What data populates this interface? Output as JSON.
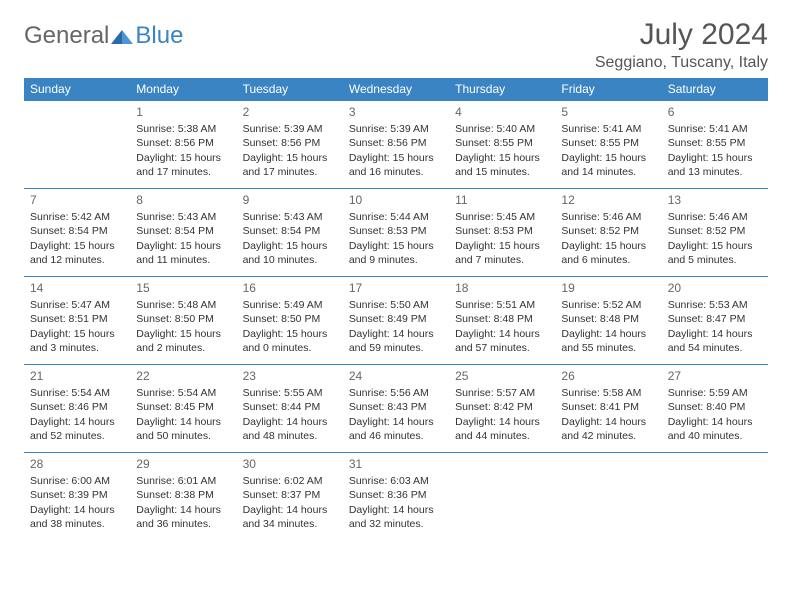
{
  "logo": {
    "general": "General",
    "blue": "Blue"
  },
  "title": "July 2024",
  "location": "Seggiano, Tuscany, Italy",
  "colors": {
    "header_bg": "#3b84c4",
    "header_text": "#ffffff",
    "border": "#3b84c4",
    "body_text": "#333333",
    "logo_gray": "#666666",
    "logo_blue": "#3b84c4",
    "background": "#ffffff"
  },
  "day_headers": [
    "Sunday",
    "Monday",
    "Tuesday",
    "Wednesday",
    "Thursday",
    "Friday",
    "Saturday"
  ],
  "weeks": [
    [
      null,
      {
        "n": "1",
        "sr": "Sunrise: 5:38 AM",
        "ss": "Sunset: 8:56 PM",
        "dl": "Daylight: 15 hours and 17 minutes."
      },
      {
        "n": "2",
        "sr": "Sunrise: 5:39 AM",
        "ss": "Sunset: 8:56 PM",
        "dl": "Daylight: 15 hours and 17 minutes."
      },
      {
        "n": "3",
        "sr": "Sunrise: 5:39 AM",
        "ss": "Sunset: 8:56 PM",
        "dl": "Daylight: 15 hours and 16 minutes."
      },
      {
        "n": "4",
        "sr": "Sunrise: 5:40 AM",
        "ss": "Sunset: 8:55 PM",
        "dl": "Daylight: 15 hours and 15 minutes."
      },
      {
        "n": "5",
        "sr": "Sunrise: 5:41 AM",
        "ss": "Sunset: 8:55 PM",
        "dl": "Daylight: 15 hours and 14 minutes."
      },
      {
        "n": "6",
        "sr": "Sunrise: 5:41 AM",
        "ss": "Sunset: 8:55 PM",
        "dl": "Daylight: 15 hours and 13 minutes."
      }
    ],
    [
      {
        "n": "7",
        "sr": "Sunrise: 5:42 AM",
        "ss": "Sunset: 8:54 PM",
        "dl": "Daylight: 15 hours and 12 minutes."
      },
      {
        "n": "8",
        "sr": "Sunrise: 5:43 AM",
        "ss": "Sunset: 8:54 PM",
        "dl": "Daylight: 15 hours and 11 minutes."
      },
      {
        "n": "9",
        "sr": "Sunrise: 5:43 AM",
        "ss": "Sunset: 8:54 PM",
        "dl": "Daylight: 15 hours and 10 minutes."
      },
      {
        "n": "10",
        "sr": "Sunrise: 5:44 AM",
        "ss": "Sunset: 8:53 PM",
        "dl": "Daylight: 15 hours and 9 minutes."
      },
      {
        "n": "11",
        "sr": "Sunrise: 5:45 AM",
        "ss": "Sunset: 8:53 PM",
        "dl": "Daylight: 15 hours and 7 minutes."
      },
      {
        "n": "12",
        "sr": "Sunrise: 5:46 AM",
        "ss": "Sunset: 8:52 PM",
        "dl": "Daylight: 15 hours and 6 minutes."
      },
      {
        "n": "13",
        "sr": "Sunrise: 5:46 AM",
        "ss": "Sunset: 8:52 PM",
        "dl": "Daylight: 15 hours and 5 minutes."
      }
    ],
    [
      {
        "n": "14",
        "sr": "Sunrise: 5:47 AM",
        "ss": "Sunset: 8:51 PM",
        "dl": "Daylight: 15 hours and 3 minutes."
      },
      {
        "n": "15",
        "sr": "Sunrise: 5:48 AM",
        "ss": "Sunset: 8:50 PM",
        "dl": "Daylight: 15 hours and 2 minutes."
      },
      {
        "n": "16",
        "sr": "Sunrise: 5:49 AM",
        "ss": "Sunset: 8:50 PM",
        "dl": "Daylight: 15 hours and 0 minutes."
      },
      {
        "n": "17",
        "sr": "Sunrise: 5:50 AM",
        "ss": "Sunset: 8:49 PM",
        "dl": "Daylight: 14 hours and 59 minutes."
      },
      {
        "n": "18",
        "sr": "Sunrise: 5:51 AM",
        "ss": "Sunset: 8:48 PM",
        "dl": "Daylight: 14 hours and 57 minutes."
      },
      {
        "n": "19",
        "sr": "Sunrise: 5:52 AM",
        "ss": "Sunset: 8:48 PM",
        "dl": "Daylight: 14 hours and 55 minutes."
      },
      {
        "n": "20",
        "sr": "Sunrise: 5:53 AM",
        "ss": "Sunset: 8:47 PM",
        "dl": "Daylight: 14 hours and 54 minutes."
      }
    ],
    [
      {
        "n": "21",
        "sr": "Sunrise: 5:54 AM",
        "ss": "Sunset: 8:46 PM",
        "dl": "Daylight: 14 hours and 52 minutes."
      },
      {
        "n": "22",
        "sr": "Sunrise: 5:54 AM",
        "ss": "Sunset: 8:45 PM",
        "dl": "Daylight: 14 hours and 50 minutes."
      },
      {
        "n": "23",
        "sr": "Sunrise: 5:55 AM",
        "ss": "Sunset: 8:44 PM",
        "dl": "Daylight: 14 hours and 48 minutes."
      },
      {
        "n": "24",
        "sr": "Sunrise: 5:56 AM",
        "ss": "Sunset: 8:43 PM",
        "dl": "Daylight: 14 hours and 46 minutes."
      },
      {
        "n": "25",
        "sr": "Sunrise: 5:57 AM",
        "ss": "Sunset: 8:42 PM",
        "dl": "Daylight: 14 hours and 44 minutes."
      },
      {
        "n": "26",
        "sr": "Sunrise: 5:58 AM",
        "ss": "Sunset: 8:41 PM",
        "dl": "Daylight: 14 hours and 42 minutes."
      },
      {
        "n": "27",
        "sr": "Sunrise: 5:59 AM",
        "ss": "Sunset: 8:40 PM",
        "dl": "Daylight: 14 hours and 40 minutes."
      }
    ],
    [
      {
        "n": "28",
        "sr": "Sunrise: 6:00 AM",
        "ss": "Sunset: 8:39 PM",
        "dl": "Daylight: 14 hours and 38 minutes."
      },
      {
        "n": "29",
        "sr": "Sunrise: 6:01 AM",
        "ss": "Sunset: 8:38 PM",
        "dl": "Daylight: 14 hours and 36 minutes."
      },
      {
        "n": "30",
        "sr": "Sunrise: 6:02 AM",
        "ss": "Sunset: 8:37 PM",
        "dl": "Daylight: 14 hours and 34 minutes."
      },
      {
        "n": "31",
        "sr": "Sunrise: 6:03 AM",
        "ss": "Sunset: 8:36 PM",
        "dl": "Daylight: 14 hours and 32 minutes."
      },
      null,
      null,
      null
    ]
  ]
}
